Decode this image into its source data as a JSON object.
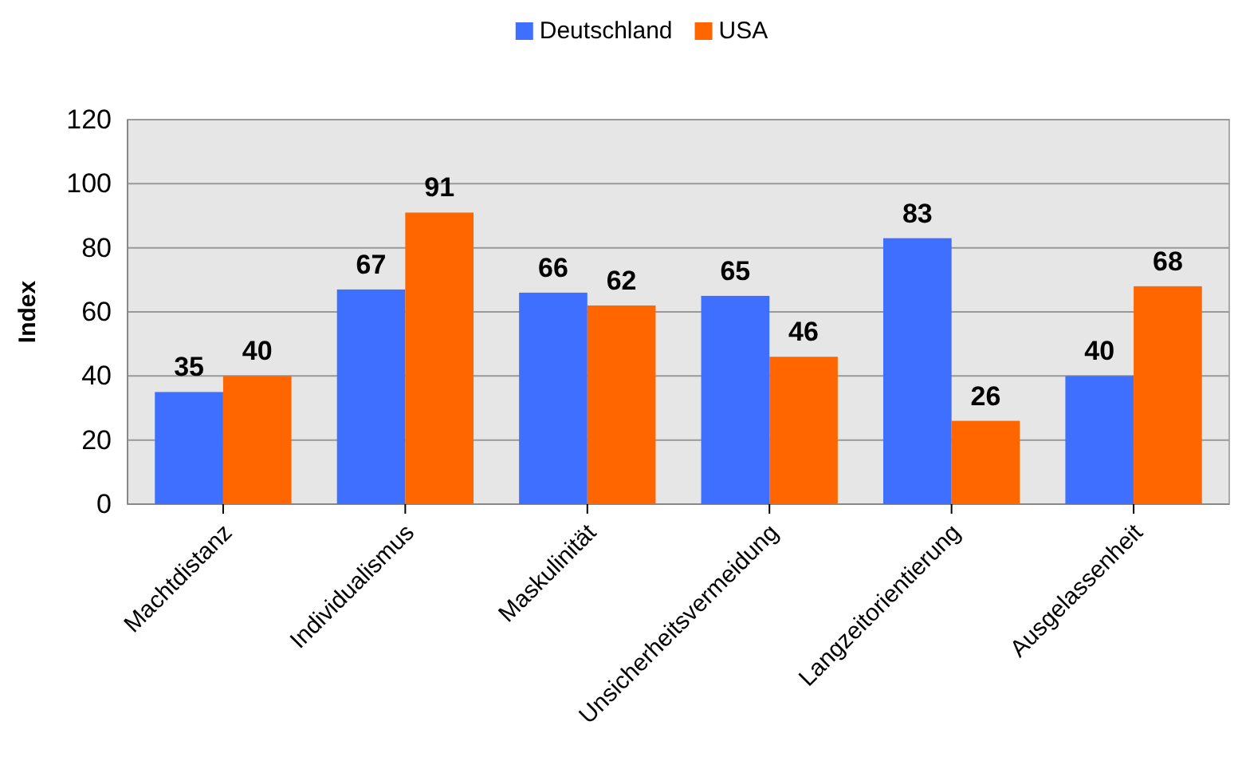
{
  "chart_data": {
    "type": "bar",
    "ylabel": "Index",
    "categories": [
      "Machtdistanz",
      "Individualismus",
      "Maskulinität",
      "Unsicherheitsvermeidung",
      "Langzeitorientierung",
      "Ausgelassenheit"
    ],
    "series": [
      {
        "name": "Deutschland",
        "color": "#3f6fff",
        "values": [
          35,
          67,
          66,
          65,
          83,
          40
        ]
      },
      {
        "name": "USA",
        "color": "#ff6600",
        "values": [
          40,
          91,
          62,
          46,
          26,
          68
        ]
      }
    ],
    "ylim": [
      0,
      120
    ],
    "yticks": [
      0,
      20,
      40,
      60,
      80,
      100,
      120
    ],
    "grid": "y",
    "legend": "top",
    "data_labels": true
  }
}
